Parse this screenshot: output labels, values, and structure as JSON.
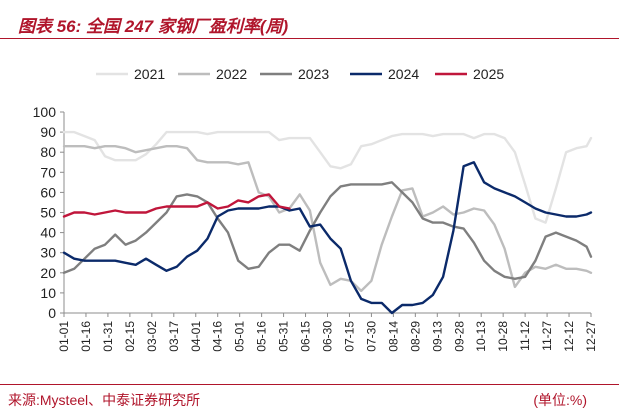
{
  "header": {
    "figure_label": "图表 56:",
    "figure_title": "全国 247 家钢厂盈利率(周)"
  },
  "footer": {
    "source": "来源:Mysteel、中泰证券研究所",
    "unit": "(单位:%)"
  },
  "colors": {
    "accent": "#b0152b"
  },
  "chart_data": {
    "type": "line",
    "title": "全国 247 家钢厂盈利率(周)",
    "xlabel": "",
    "ylabel": "",
    "ylim": [
      0,
      100
    ],
    "yticks": [
      0,
      10,
      20,
      30,
      40,
      50,
      60,
      70,
      80,
      90,
      100
    ],
    "grid": false,
    "legend_position": "top",
    "categories": [
      "01-01",
      "01-16",
      "01-31",
      "02-15",
      "03-02",
      "03-17",
      "04-01",
      "04-16",
      "05-01",
      "05-16",
      "05-31",
      "06-15",
      "06-30",
      "07-15",
      "07-30",
      "08-14",
      "08-29",
      "09-13",
      "09-28",
      "10-13",
      "10-28",
      "11-12",
      "11-27",
      "12-12",
      "12-27"
    ],
    "x_range": [
      1,
      361
    ],
    "series": [
      {
        "name": "2021",
        "color": "#e3e3e3",
        "points": [
          [
            1,
            90
          ],
          [
            8,
            90
          ],
          [
            15,
            88
          ],
          [
            22,
            86
          ],
          [
            29,
            78
          ],
          [
            36,
            76
          ],
          [
            43,
            76
          ],
          [
            50,
            76
          ],
          [
            57,
            79
          ],
          [
            64,
            84
          ],
          [
            71,
            90
          ],
          [
            78,
            90
          ],
          [
            85,
            90
          ],
          [
            92,
            90
          ],
          [
            99,
            89
          ],
          [
            106,
            90
          ],
          [
            113,
            90
          ],
          [
            120,
            90
          ],
          [
            127,
            90
          ],
          [
            134,
            90
          ],
          [
            141,
            90
          ],
          [
            148,
            86
          ],
          [
            155,
            87
          ],
          [
            162,
            87
          ],
          [
            169,
            87
          ],
          [
            176,
            80
          ],
          [
            183,
            73
          ],
          [
            190,
            72
          ],
          [
            197,
            74
          ],
          [
            204,
            83
          ],
          [
            211,
            84
          ],
          [
            218,
            86
          ],
          [
            225,
            88
          ],
          [
            232,
            89
          ],
          [
            239,
            89
          ],
          [
            246,
            89
          ],
          [
            253,
            88
          ],
          [
            260,
            89
          ],
          [
            267,
            89
          ],
          [
            274,
            89
          ],
          [
            281,
            87
          ],
          [
            288,
            89
          ],
          [
            295,
            89
          ],
          [
            302,
            87
          ],
          [
            309,
            80
          ],
          [
            316,
            64
          ],
          [
            323,
            47
          ],
          [
            330,
            45
          ],
          [
            337,
            62
          ],
          [
            344,
            80
          ],
          [
            351,
            82
          ],
          [
            358,
            83
          ],
          [
            361,
            87
          ]
        ]
      },
      {
        "name": "2022",
        "color": "#bdbdbd",
        "points": [
          [
            1,
            83
          ],
          [
            8,
            83
          ],
          [
            15,
            83
          ],
          [
            22,
            82
          ],
          [
            29,
            83
          ],
          [
            36,
            83
          ],
          [
            43,
            82
          ],
          [
            50,
            80
          ],
          [
            57,
            81
          ],
          [
            64,
            82
          ],
          [
            71,
            83
          ],
          [
            78,
            83
          ],
          [
            85,
            82
          ],
          [
            92,
            76
          ],
          [
            99,
            75
          ],
          [
            106,
            75
          ],
          [
            113,
            75
          ],
          [
            120,
            74
          ],
          [
            127,
            75
          ],
          [
            134,
            60
          ],
          [
            141,
            58
          ],
          [
            148,
            50
          ],
          [
            155,
            52
          ],
          [
            162,
            59
          ],
          [
            169,
            51
          ],
          [
            176,
            25
          ],
          [
            183,
            14
          ],
          [
            190,
            17
          ],
          [
            197,
            16
          ],
          [
            204,
            11
          ],
          [
            211,
            16
          ],
          [
            218,
            34
          ],
          [
            225,
            48
          ],
          [
            232,
            61
          ],
          [
            239,
            62
          ],
          [
            246,
            48
          ],
          [
            253,
            50
          ],
          [
            260,
            53
          ],
          [
            267,
            49
          ],
          [
            274,
            50
          ],
          [
            281,
            52
          ],
          [
            288,
            51
          ],
          [
            295,
            44
          ],
          [
            302,
            32
          ],
          [
            309,
            13
          ],
          [
            316,
            20
          ],
          [
            323,
            23
          ],
          [
            330,
            22
          ],
          [
            337,
            24
          ],
          [
            344,
            22
          ],
          [
            351,
            22
          ],
          [
            358,
            21
          ],
          [
            361,
            20
          ]
        ]
      },
      {
        "name": "2023",
        "color": "#7f7f7f",
        "points": [
          [
            1,
            20
          ],
          [
            8,
            22
          ],
          [
            15,
            27
          ],
          [
            22,
            32
          ],
          [
            29,
            34
          ],
          [
            36,
            39
          ],
          [
            43,
            34
          ],
          [
            50,
            36
          ],
          [
            57,
            40
          ],
          [
            64,
            45
          ],
          [
            71,
            50
          ],
          [
            78,
            58
          ],
          [
            85,
            59
          ],
          [
            92,
            58
          ],
          [
            99,
            55
          ],
          [
            106,
            47
          ],
          [
            113,
            40
          ],
          [
            120,
            26
          ],
          [
            127,
            22
          ],
          [
            134,
            23
          ],
          [
            141,
            30
          ],
          [
            148,
            34
          ],
          [
            155,
            34
          ],
          [
            162,
            31
          ],
          [
            169,
            41
          ],
          [
            176,
            50
          ],
          [
            183,
            58
          ],
          [
            190,
            63
          ],
          [
            197,
            64
          ],
          [
            204,
            64
          ],
          [
            211,
            64
          ],
          [
            218,
            64
          ],
          [
            225,
            65
          ],
          [
            232,
            60
          ],
          [
            239,
            55
          ],
          [
            246,
            47
          ],
          [
            253,
            45
          ],
          [
            260,
            45
          ],
          [
            267,
            43
          ],
          [
            274,
            42
          ],
          [
            281,
            35
          ],
          [
            288,
            26
          ],
          [
            295,
            21
          ],
          [
            302,
            18
          ],
          [
            309,
            17
          ],
          [
            316,
            18
          ],
          [
            323,
            26
          ],
          [
            330,
            38
          ],
          [
            337,
            40
          ],
          [
            344,
            38
          ],
          [
            351,
            36
          ],
          [
            358,
            33
          ],
          [
            361,
            28
          ]
        ]
      },
      {
        "name": "2024",
        "color": "#0b2a6a",
        "points": [
          [
            1,
            30
          ],
          [
            8,
            27
          ],
          [
            15,
            26
          ],
          [
            22,
            26
          ],
          [
            29,
            26
          ],
          [
            36,
            26
          ],
          [
            43,
            25
          ],
          [
            50,
            24
          ],
          [
            57,
            27
          ],
          [
            64,
            24
          ],
          [
            71,
            21
          ],
          [
            78,
            23
          ],
          [
            85,
            28
          ],
          [
            92,
            31
          ],
          [
            99,
            37
          ],
          [
            106,
            48
          ],
          [
            113,
            51
          ],
          [
            120,
            52
          ],
          [
            127,
            52
          ],
          [
            134,
            52
          ],
          [
            141,
            53
          ],
          [
            148,
            53
          ],
          [
            155,
            51
          ],
          [
            162,
            52
          ],
          [
            169,
            43
          ],
          [
            176,
            44
          ],
          [
            183,
            37
          ],
          [
            190,
            32
          ],
          [
            197,
            16
          ],
          [
            204,
            7
          ],
          [
            211,
            5
          ],
          [
            218,
            5
          ],
          [
            225,
            0
          ],
          [
            232,
            4
          ],
          [
            239,
            4
          ],
          [
            246,
            5
          ],
          [
            253,
            9
          ],
          [
            260,
            18
          ],
          [
            267,
            41
          ],
          [
            274,
            73
          ],
          [
            281,
            75
          ],
          [
            288,
            65
          ],
          [
            295,
            62
          ],
          [
            302,
            60
          ],
          [
            309,
            58
          ],
          [
            316,
            55
          ],
          [
            323,
            52
          ],
          [
            330,
            50
          ],
          [
            337,
            49
          ],
          [
            344,
            48
          ],
          [
            351,
            48
          ],
          [
            358,
            49
          ],
          [
            361,
            50
          ]
        ]
      },
      {
        "name": "2025",
        "color": "#c0163b",
        "points": [
          [
            1,
            48
          ],
          [
            8,
            50
          ],
          [
            15,
            50
          ],
          [
            22,
            49
          ],
          [
            29,
            50
          ],
          [
            36,
            51
          ],
          [
            43,
            50
          ],
          [
            50,
            50
          ],
          [
            57,
            50
          ],
          [
            64,
            52
          ],
          [
            71,
            53
          ],
          [
            78,
            53
          ],
          [
            85,
            53
          ],
          [
            92,
            53
          ],
          [
            99,
            55
          ],
          [
            106,
            52
          ],
          [
            113,
            53
          ],
          [
            120,
            56
          ],
          [
            127,
            55
          ],
          [
            134,
            58
          ],
          [
            141,
            59
          ],
          [
            148,
            53
          ],
          [
            155,
            52
          ]
        ]
      }
    ]
  }
}
